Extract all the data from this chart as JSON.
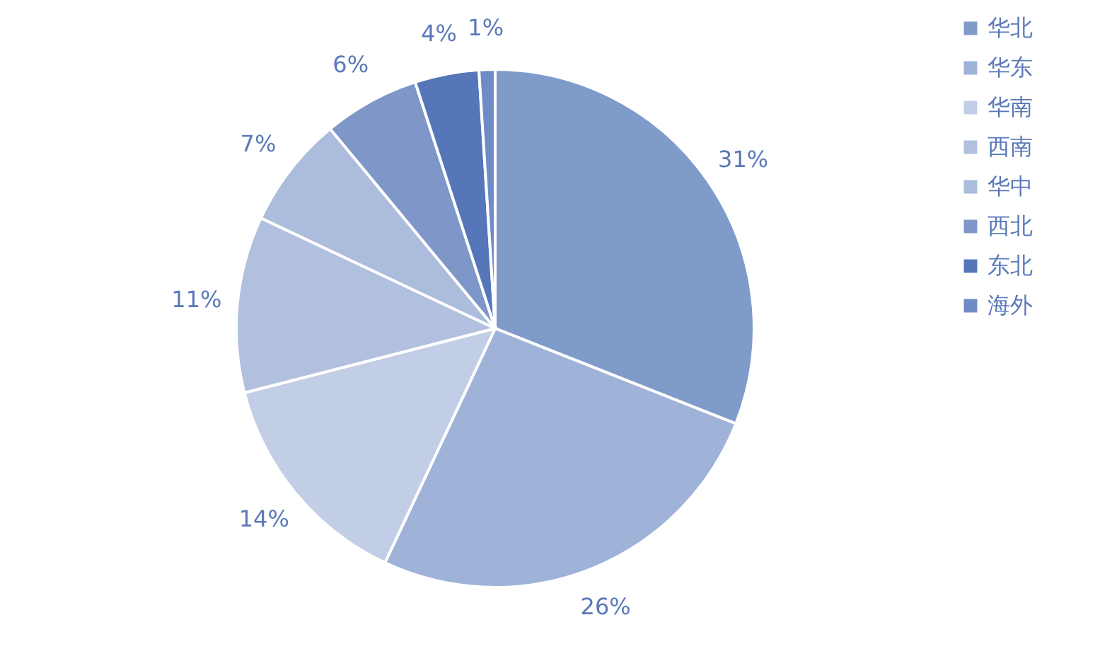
{
  "chart_data": {
    "type": "pie",
    "categories": [
      "华北",
      "华东",
      "华南",
      "西南",
      "华中",
      "西北",
      "东北",
      "海外"
    ],
    "values": [
      31,
      26,
      14,
      11,
      7,
      6,
      4,
      1
    ],
    "colors": [
      "#7f9bca",
      "#9fb2d8",
      "#c2cde6",
      "#b0c0de",
      "#abbcdc",
      "#7f97c8",
      "#5676ba",
      "#6f8bc5"
    ],
    "value_labels": [
      "31%",
      "26%",
      "14%",
      "11%",
      "7%",
      "6%",
      "4%",
      "1%"
    ],
    "legend": "right"
  }
}
